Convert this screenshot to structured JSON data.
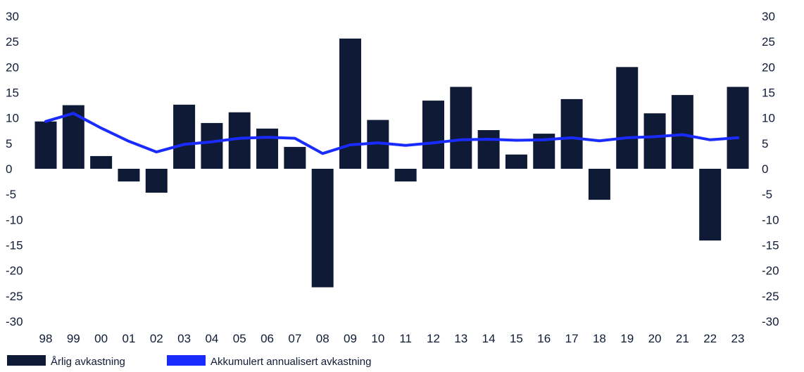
{
  "chart_data": {
    "type": "bar",
    "categories": [
      "98",
      "99",
      "00",
      "01",
      "02",
      "03",
      "04",
      "05",
      "06",
      "07",
      "08",
      "09",
      "10",
      "11",
      "12",
      "13",
      "14",
      "15",
      "16",
      "17",
      "18",
      "19",
      "20",
      "21",
      "22",
      "23"
    ],
    "series": [
      {
        "name": "Årlig avkastning",
        "type": "bar",
        "color": "#0f1b36",
        "values": [
          9.3,
          12.5,
          2.5,
          -2.5,
          -4.7,
          12.6,
          9.0,
          11.1,
          7.9,
          4.3,
          -23.3,
          25.6,
          9.6,
          -2.5,
          13.4,
          16.1,
          7.6,
          2.8,
          6.9,
          13.7,
          -6.1,
          20.0,
          10.9,
          14.5,
          -14.1,
          16.1
        ]
      },
      {
        "name": "Akkumulert annualisert avkastning",
        "type": "line",
        "color": "#1a2bff",
        "values": [
          9.3,
          10.9,
          8.0,
          5.4,
          3.3,
          4.8,
          5.3,
          6.0,
          6.2,
          6.0,
          3.0,
          4.7,
          5.1,
          4.6,
          5.1,
          5.7,
          5.8,
          5.6,
          5.7,
          6.1,
          5.5,
          6.1,
          6.3,
          6.7,
          5.7,
          6.1
        ]
      }
    ],
    "ylim": [
      -30,
      30
    ],
    "yticks": [
      30,
      25,
      20,
      15,
      10,
      5,
      0,
      -5,
      -10,
      -15,
      -20,
      -25,
      -30
    ],
    "secondary_axis": true,
    "grid": false,
    "legend_position": "bottom-left",
    "title": "",
    "xlabel": "",
    "ylabel": ""
  }
}
